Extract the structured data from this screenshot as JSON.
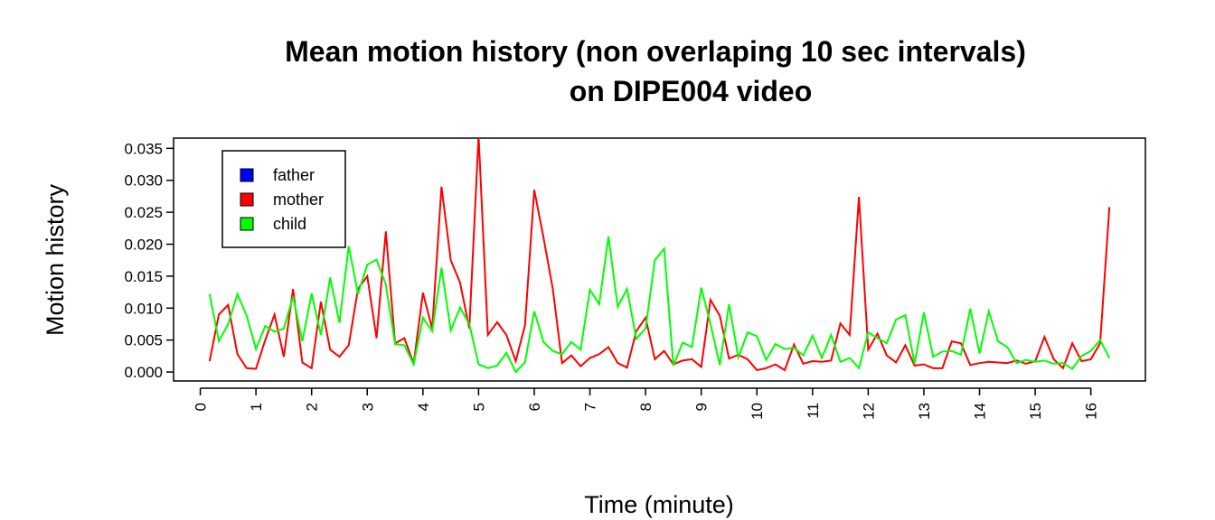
{
  "chart_data": {
    "type": "line",
    "title": [
      "Mean motion history (non overlaping 10 sec intervals)",
      "on DIPE004 video"
    ],
    "x_label": "Time (minute)",
    "y_label": "Motion history",
    "xlim": [
      -0.48,
      16.98
    ],
    "ylim": [
      -0.0014,
      0.0366
    ],
    "xticks": [
      0,
      1,
      2,
      3,
      4,
      5,
      6,
      7,
      8,
      9,
      10,
      11,
      12,
      13,
      14,
      15,
      16
    ],
    "yticks": [
      {
        "value": 0,
        "label": "0.000"
      },
      {
        "value": 0.005,
        "label": "0.005"
      },
      {
        "value": 0.01,
        "label": "0.010"
      },
      {
        "value": 0.015,
        "label": "0.015"
      },
      {
        "value": 0.02,
        "label": "0.020"
      },
      {
        "value": 0.025,
        "label": "0.025"
      },
      {
        "value": 0.03,
        "label": "0.030"
      },
      {
        "value": 0.035,
        "label": "0.035"
      }
    ],
    "legend_position": "top-left",
    "x": [
      0.1667,
      0.3333,
      0.5,
      0.6667,
      0.8333,
      1,
      1.1667,
      1.3333,
      1.5,
      1.6667,
      1.8333,
      2,
      2.1667,
      2.3333,
      2.5,
      2.6667,
      2.8333,
      3,
      3.1667,
      3.3333,
      3.5,
      3.6667,
      3.8333,
      4,
      4.1667,
      4.3333,
      4.5,
      4.6667,
      4.8333,
      5,
      5.1667,
      5.3333,
      5.5,
      5.6667,
      5.8333,
      6,
      6.1667,
      6.3333,
      6.5,
      6.6667,
      6.8333,
      7,
      7.1667,
      7.3333,
      7.5,
      7.6667,
      7.8333,
      8,
      8.1667,
      8.3333,
      8.5,
      8.6667,
      8.8333,
      9,
      9.1667,
      9.3333,
      9.5,
      9.6667,
      9.8333,
      10,
      10.1667,
      10.3333,
      10.5,
      10.6667,
      10.8333,
      11,
      11.1667,
      11.3333,
      11.5,
      11.6667,
      11.8333,
      12,
      12.1667,
      12.3333,
      12.5,
      12.6667,
      12.8333,
      13,
      13.1667,
      13.3333,
      13.5,
      13.6667,
      13.8333,
      14,
      14.1667,
      14.3333,
      14.5,
      14.6667,
      14.8333,
      15,
      15.1667,
      15.3333,
      15.5,
      15.6667,
      15.8333,
      16,
      16.1667,
      16.3333
    ],
    "series": [
      {
        "name": "father",
        "color": "#0000ff",
        "values": [
          null,
          null,
          null,
          null,
          null,
          null,
          null,
          null,
          null,
          null,
          null,
          null,
          null,
          null,
          null,
          null,
          null,
          null,
          null,
          null,
          null,
          null,
          null,
          null,
          null,
          null,
          null,
          null,
          null,
          null,
          null,
          null,
          null,
          null,
          null,
          null,
          null,
          null,
          null,
          null,
          null,
          null,
          null,
          null,
          null,
          null,
          null,
          null,
          null,
          null,
          null,
          null,
          null,
          null,
          null,
          null,
          null,
          null,
          null,
          null,
          null,
          null,
          null,
          null,
          null,
          null,
          null,
          null,
          null,
          null,
          null,
          null,
          null,
          null,
          null,
          null,
          null,
          null,
          null,
          null,
          null,
          null,
          null,
          null,
          null,
          null,
          null,
          null,
          null,
          null,
          null,
          null,
          null,
          null,
          null,
          null,
          null,
          null
        ]
      },
      {
        "name": "mother",
        "color": "#ff0000",
        "values": [
          0.0017,
          0.009,
          0.0105,
          0.0028,
          0.0006,
          0.0005,
          0.005,
          0.009,
          0.0024,
          0.013,
          0.0015,
          0.0006,
          0.011,
          0.0035,
          0.0024,
          0.0042,
          0.013,
          0.015,
          0.0053,
          0.022,
          0.0045,
          0.0053,
          0.0013,
          0.0124,
          0.0068,
          0.029,
          0.0175,
          0.014,
          0.0068,
          0.037,
          0.0058,
          0.0078,
          0.0058,
          0.0017,
          0.0073,
          0.0285,
          0.021,
          0.013,
          0.0014,
          0.0026,
          0.0009,
          0.0022,
          0.0028,
          0.0039,
          0.0014,
          0.0007,
          0.0064,
          0.0085,
          0.002,
          0.0033,
          0.0012,
          0.0018,
          0.002,
          0.0008,
          0.0113,
          0.0088,
          0.0021,
          0.0027,
          0.002,
          0.0003,
          0.0006,
          0.0012,
          0.0003,
          0.0043,
          0.0013,
          0.0017,
          0.0016,
          0.0018,
          0.0076,
          0.0058,
          0.0274,
          0.0035,
          0.006,
          0.0026,
          0.0015,
          0.0042,
          0.001,
          0.0012,
          0.0006,
          0.0006,
          0.0048,
          0.0045,
          0.0011,
          0.0014,
          0.0016,
          0.0015,
          0.0014,
          0.0018,
          0.0013,
          0.0017,
          0.0055,
          0.002,
          0.0006,
          0.0045,
          0.0017,
          0.002,
          0.0045,
          0.0258
        ]
      },
      {
        "name": "child",
        "color": "#00ff00",
        "values": [
          0.0122,
          0.0048,
          0.0075,
          0.0122,
          0.0088,
          0.0036,
          0.0072,
          0.0063,
          0.0068,
          0.0118,
          0.0048,
          0.0123,
          0.0058,
          0.0148,
          0.0077,
          0.0197,
          0.0122,
          0.0168,
          0.0176,
          0.0137,
          0.0044,
          0.0042,
          0.0012,
          0.0085,
          0.0064,
          0.0163,
          0.0065,
          0.0101,
          0.0075,
          0.0012,
          0.0006,
          0.001,
          0.003,
          0,
          0.0015,
          0.0095,
          0.0047,
          0.0033,
          0.0028,
          0.0047,
          0.0035,
          0.0129,
          0.0106,
          0.0212,
          0.0102,
          0.013,
          0.0052,
          0.0068,
          0.0175,
          0.0193,
          0.001,
          0.0046,
          0.0039,
          0.0132,
          0.0075,
          0.0011,
          0.0106,
          0.0023,
          0.0062,
          0.0056,
          0.0019,
          0.0044,
          0.0036,
          0.0038,
          0.0026,
          0.0057,
          0.0022,
          0.0058,
          0.0016,
          0.0022,
          0.0006,
          0.0062,
          0.0053,
          0.0045,
          0.0082,
          0.0089,
          0.0013,
          0.0093,
          0.0024,
          0.0032,
          0.0033,
          0.0027,
          0.0099,
          0.0029,
          0.0095,
          0.0048,
          0.0039,
          0.0014,
          0.0019,
          0.0016,
          0.0018,
          0.0013,
          0.0014,
          0.0005,
          0.0025,
          0.0033,
          0.005,
          0.0022
        ]
      }
    ]
  }
}
